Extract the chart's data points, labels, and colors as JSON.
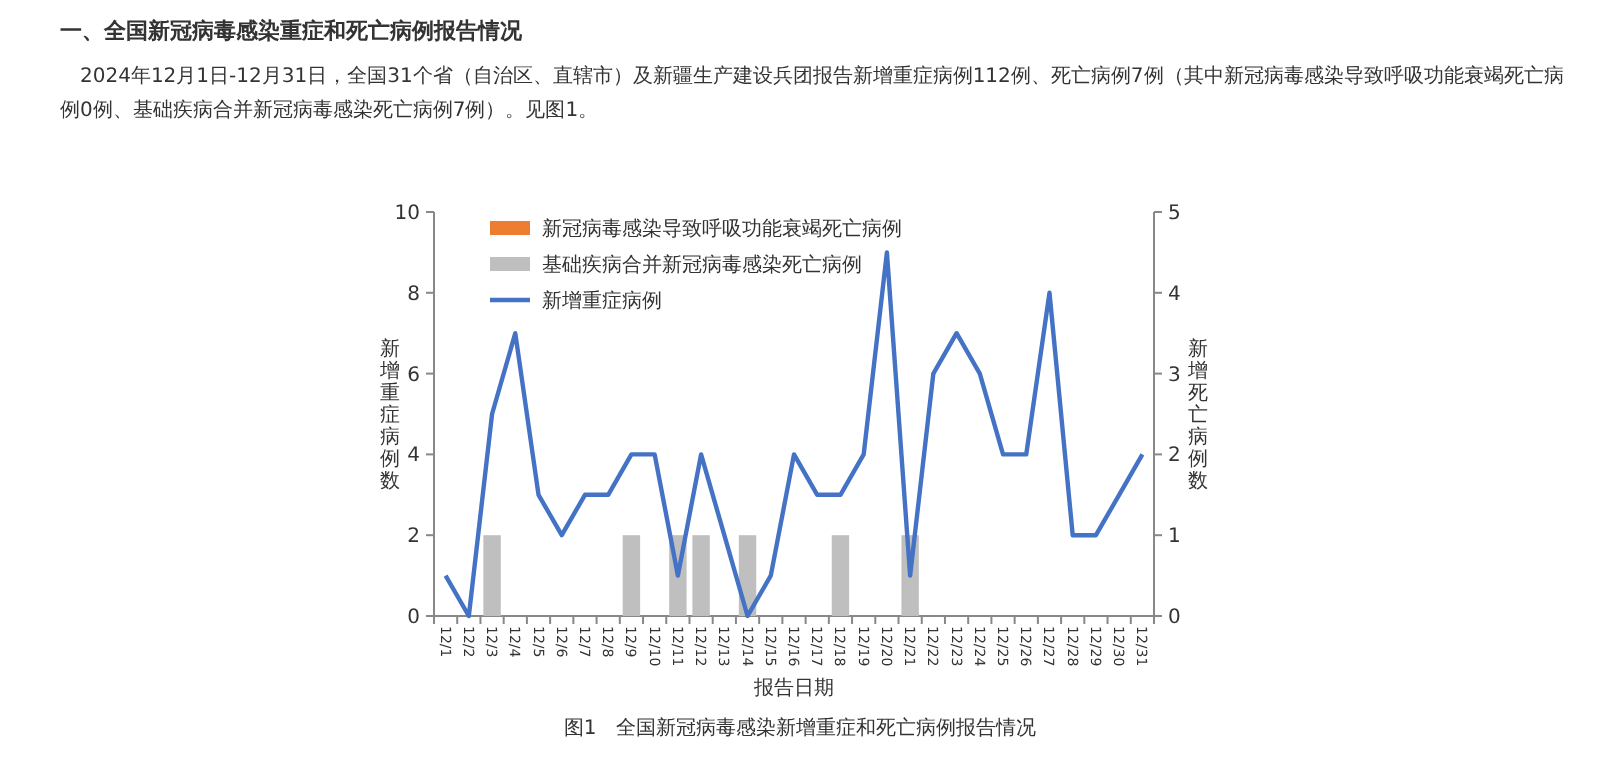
{
  "chart_data": {
    "type": "bar",
    "title": "一、全国新冠病毒感染重症和死亡病例报告情况",
    "subtitle": "2024年12月1日-12月31日，全国31个省（自治区、直辖市）及新疆生产建设兵团报告新增重症病例112例、死亡病例7例（其中新冠病毒感染导致呼吸功能衰竭死亡病例0例、基础疾病合并新冠病毒感染死亡病例7例）。见图1。",
    "annotations": [
      "图1　全国新冠病毒感染新增重症和死亡病例报告情况"
    ],
    "xlabel": "报告日期",
    "ylabel": "新增重症病例数",
    "y2label": "新增死亡病例数",
    "categories": [
      "12/1",
      "12/2",
      "12/3",
      "12/4",
      "12/5",
      "12/6",
      "12/7",
      "12/8",
      "12/9",
      "12/10",
      "12/11",
      "12/12",
      "12/13",
      "12/14",
      "12/15",
      "12/16",
      "12/17",
      "12/18",
      "12/19",
      "12/20",
      "12/21",
      "12/22",
      "12/23",
      "12/24",
      "12/25",
      "12/26",
      "12/27",
      "12/28",
      "12/29",
      "12/30",
      "12/31"
    ],
    "stacked": true,
    "legend": "top left",
    "ylim": [
      0,
      10
    ],
    "yticks": [
      0,
      2,
      4,
      6,
      8,
      10
    ],
    "y2lim": [
      0,
      5
    ],
    "y2ticks": [
      0,
      1,
      2,
      3,
      4,
      5
    ],
    "series": [
      {
        "name": "新冠病毒感染导致呼吸功能衰竭死亡病例",
        "type": "bar",
        "axis": "y2",
        "color": "#ed7d31",
        "values": [
          0,
          0,
          0,
          0,
          0,
          0,
          0,
          0,
          0,
          0,
          0,
          0,
          0,
          0,
          0,
          0,
          0,
          0,
          0,
          0,
          0,
          0,
          0,
          0,
          0,
          0,
          0,
          0,
          0,
          0,
          0
        ]
      },
      {
        "name": "基础疾病合并新冠病毒感染死亡病例",
        "type": "bar",
        "axis": "y2",
        "color": "#bfbfbf",
        "values": [
          0,
          0,
          1,
          0,
          0,
          0,
          0,
          0,
          1,
          0,
          1,
          1,
          0,
          1,
          0,
          0,
          0,
          1,
          0,
          0,
          1,
          0,
          0,
          0,
          0,
          0,
          0,
          0,
          0,
          0,
          0
        ]
      },
      {
        "name": "新增重症病例",
        "type": "line",
        "axis": "y",
        "color": "#4472c4",
        "values": [
          1,
          0,
          5,
          7,
          3,
          2,
          3,
          3,
          4,
          4,
          1,
          4,
          2,
          0,
          1,
          4,
          3,
          3,
          4,
          9,
          1,
          6,
          7,
          6,
          4,
          4,
          8,
          2,
          2,
          3,
          4
        ]
      }
    ]
  }
}
